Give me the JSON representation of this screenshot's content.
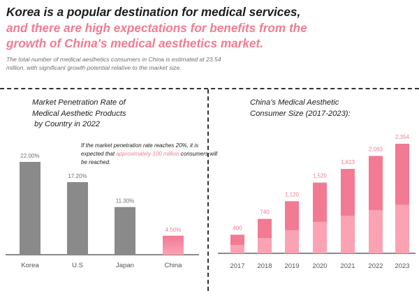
{
  "header": {
    "line1": "Korea is a popular destination for medical services,",
    "line2": "and there are high expectations for benefits from the",
    "line3": "growth of China's medical aesthetics market.",
    "subtitle": "The total number of medical aesthetics consumers in China is estimated at 23.54 million, with significant growth potential relative to the market size."
  },
  "left_panel": {
    "title": "Market Penetration Rate of\nMedical Aesthetic Products\n by Country in 2022",
    "annotation": {
      "before": "If the market penetration rate reaches 20%, it is expected that ",
      "highlight": "approximately 100 million",
      "after": " consumers will be reached."
    }
  },
  "right_panel": {
    "title": "China's Medical Aesthetic\nConsumer Size (2017-2023):"
  },
  "colors": {
    "headline_dark": "#1c1c1c",
    "accent_pink": "#f07c91",
    "gray_bar": "#8a8a8a",
    "pink_top": "#f27a93",
    "pink_bottom": "#fba3b3"
  },
  "chart_data": [
    {
      "type": "bar",
      "categories": [
        "Korea",
        "U.S",
        "Japan",
        "China"
      ],
      "values": [
        22.0,
        17.2,
        11.3,
        4.5
      ],
      "value_labels": [
        "22.00%",
        "17.20%",
        "11.30%",
        "4.50%"
      ],
      "title": "Market Penetration Rate of Medical Aesthetic Products by Country in 2022",
      "xlabel": "",
      "ylabel": "",
      "ylim": [
        0,
        22
      ],
      "grid": false
    },
    {
      "type": "bar",
      "categories": [
        "2017",
        "2018",
        "2019",
        "2020",
        "2021",
        "2022",
        "2023"
      ],
      "values": [
        400,
        740,
        1120,
        1520,
        1813,
        2093,
        2354
      ],
      "value_labels": [
        "400",
        "740",
        "1,120",
        "1,520",
        "1,813",
        "2,093",
        "2,354"
      ],
      "title": "China's Medical Aesthetic Consumer Size (2017-2023):",
      "xlabel": "",
      "ylabel": "",
      "ylim": [
        0,
        2354
      ],
      "grid": false
    }
  ]
}
